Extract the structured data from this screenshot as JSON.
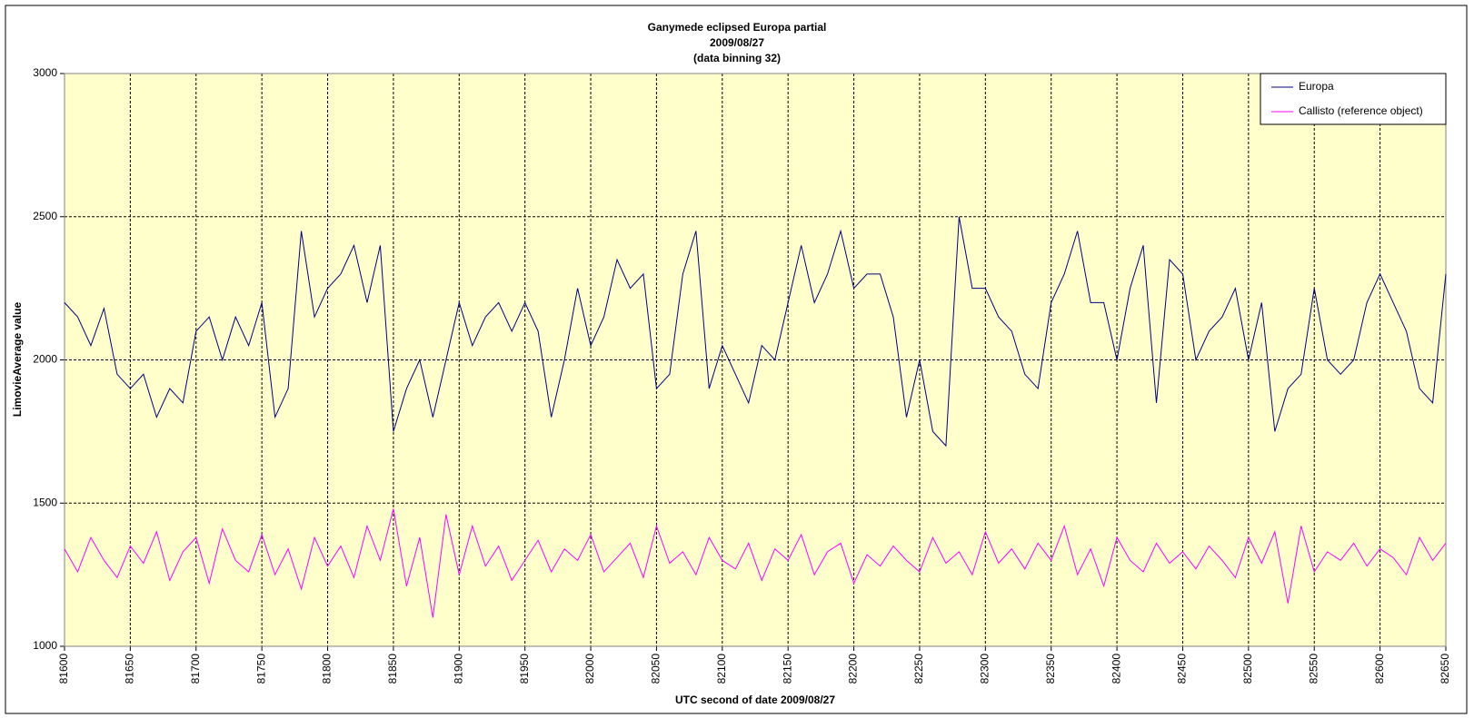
{
  "chart_data": {
    "type": "line",
    "title": "Ganymede eclipsed Europa partial",
    "subtitle": [
      "2009/08/27",
      "(data binning 32)"
    ],
    "xlabel": "UTC second  of date 2009/08/27",
    "ylabel": "LimovieAverage value",
    "xlim": [
      81600,
      82650
    ],
    "xticks": [
      81600,
      81650,
      81700,
      81750,
      81800,
      81850,
      81900,
      81950,
      82000,
      82050,
      82100,
      82150,
      82200,
      82250,
      82300,
      82350,
      82400,
      82450,
      82500,
      82550,
      82600,
      82650
    ],
    "ylim": [
      1000,
      3000
    ],
    "yticks": [
      1000,
      1500,
      2000,
      2500,
      3000
    ],
    "grid": true,
    "legend": "upper right",
    "x": [
      81600,
      81610,
      81620,
      81630,
      81640,
      81650,
      81660,
      81670,
      81680,
      81690,
      81700,
      81710,
      81720,
      81730,
      81740,
      81750,
      81760,
      81770,
      81780,
      81790,
      81800,
      81810,
      81820,
      81830,
      81840,
      81850,
      81860,
      81870,
      81880,
      81890,
      81900,
      81910,
      81920,
      81930,
      81940,
      81950,
      81960,
      81970,
      81980,
      81990,
      82000,
      82010,
      82020,
      82030,
      82040,
      82050,
      82060,
      82070,
      82080,
      82090,
      82100,
      82110,
      82120,
      82130,
      82140,
      82150,
      82160,
      82170,
      82180,
      82190,
      82200,
      82210,
      82220,
      82230,
      82240,
      82250,
      82260,
      82270,
      82280,
      82290,
      82300,
      82310,
      82320,
      82330,
      82340,
      82350,
      82360,
      82370,
      82380,
      82390,
      82400,
      82410,
      82420,
      82430,
      82440,
      82450,
      82460,
      82470,
      82480,
      82490,
      82500,
      82510,
      82520,
      82530,
      82540,
      82550,
      82560,
      82570,
      82580,
      82590,
      82600,
      82610,
      82620,
      82630,
      82640,
      82650
    ],
    "series": [
      {
        "name": "Europa",
        "color": "#000080",
        "values": [
          2200,
          2150,
          2050,
          2180,
          1950,
          1900,
          1950,
          1800,
          1900,
          1850,
          2100,
          2150,
          2000,
          2150,
          2050,
          2200,
          1800,
          1900,
          2450,
          2150,
          2250,
          2300,
          2400,
          2200,
          2400,
          1750,
          1900,
          2000,
          1800,
          2000,
          2200,
          2050,
          2150,
          2200,
          2100,
          2200,
          2100,
          1800,
          2000,
          2250,
          2050,
          2150,
          2350,
          2250,
          2300,
          1900,
          1950,
          2300,
          2450,
          1900,
          2050,
          1950,
          1850,
          2050,
          2000,
          2200,
          2400,
          2200,
          2300,
          2450,
          2250,
          2300,
          2300,
          2150,
          1800,
          2000,
          1750,
          1700,
          2500,
          2250,
          2250,
          2150,
          2100,
          1950,
          1900,
          2200,
          2300,
          2450,
          2200,
          2200,
          2000,
          2250,
          2400,
          1850,
          2350,
          2300,
          2000,
          2100,
          2150,
          2250,
          2000,
          2200,
          1750,
          1900,
          1950,
          2250,
          2000,
          1950,
          2000,
          2200,
          2300,
          2200,
          2100,
          1900,
          1850,
          2300
        ]
      },
      {
        "name": "Callisto (reference object)",
        "color": "#ff00ff",
        "values": [
          1340,
          1260,
          1380,
          1300,
          1240,
          1350,
          1290,
          1400,
          1230,
          1330,
          1380,
          1220,
          1410,
          1300,
          1260,
          1390,
          1250,
          1340,
          1200,
          1380,
          1280,
          1350,
          1240,
          1420,
          1300,
          1480,
          1210,
          1380,
          1100,
          1460,
          1250,
          1420,
          1280,
          1350,
          1230,
          1300,
          1370,
          1260,
          1340,
          1300,
          1390,
          1260,
          1310,
          1360,
          1240,
          1420,
          1290,
          1330,
          1250,
          1380,
          1300,
          1270,
          1360,
          1230,
          1340,
          1300,
          1390,
          1250,
          1330,
          1360,
          1220,
          1320,
          1280,
          1350,
          1300,
          1260,
          1380,
          1290,
          1330,
          1250,
          1400,
          1290,
          1340,
          1270,
          1360,
          1300,
          1420,
          1250,
          1340,
          1210,
          1380,
          1300,
          1260,
          1360,
          1290,
          1330,
          1270,
          1350,
          1300,
          1240,
          1380,
          1290,
          1400,
          1150,
          1420,
          1260,
          1330,
          1300,
          1360,
          1280,
          1340,
          1310,
          1250,
          1380,
          1300,
          1360
        ]
      }
    ]
  }
}
